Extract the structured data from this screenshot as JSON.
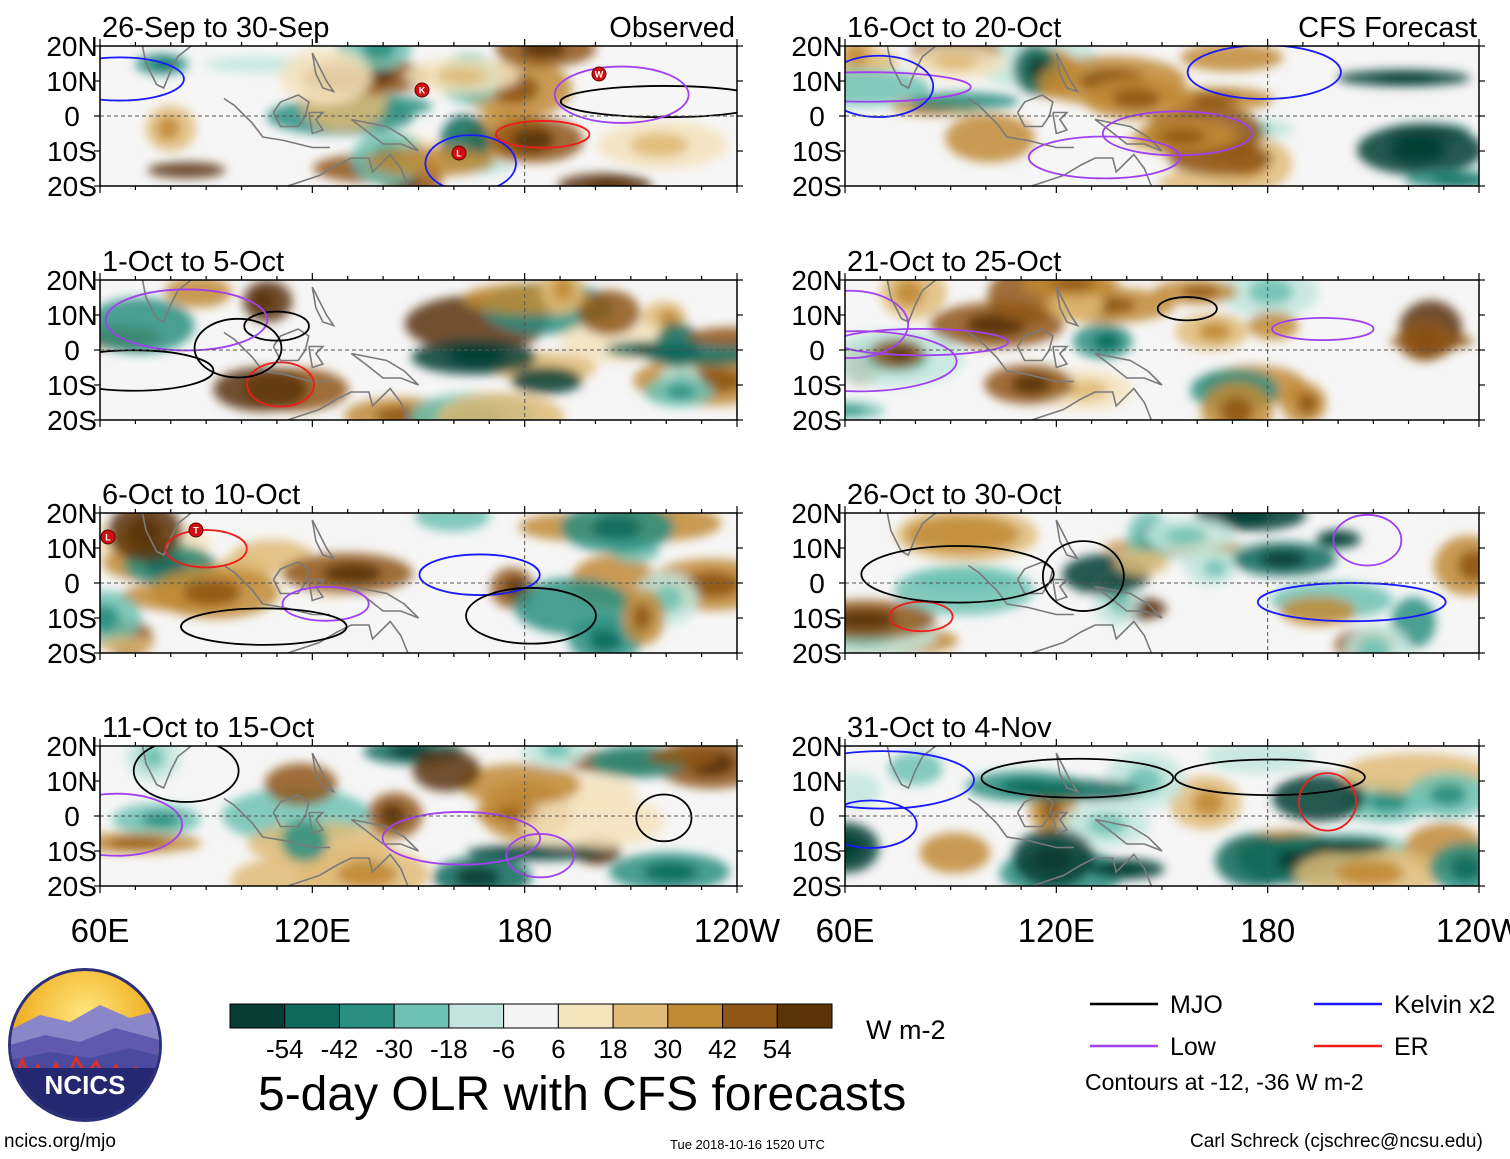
{
  "chart_data": {
    "type": "heatmap",
    "title": "5-day OLR with CFS forecasts",
    "units": "W m-2",
    "x_tick_labels": [
      "60E",
      "120E",
      "180",
      "120W"
    ],
    "y_tick_labels": [
      "20N",
      "10N",
      "0",
      "10S",
      "20S"
    ],
    "xlim_deg_east": [
      60,
      240
    ],
    "ylim_deg": [
      -20,
      20
    ],
    "panel_groups": {
      "observed": "Observed",
      "forecast": "CFS Forecast"
    },
    "panels": [
      {
        "title": "26-Sep to 30-Sep",
        "group": "observed"
      },
      {
        "title": "1-Oct to 5-Oct",
        "group": "observed"
      },
      {
        "title": "6-Oct to 10-Oct",
        "group": "observed"
      },
      {
        "title": "11-Oct to 15-Oct",
        "group": "observed"
      },
      {
        "title": "16-Oct to 20-Oct",
        "group": "forecast"
      },
      {
        "title": "21-Oct to 25-Oct",
        "group": "forecast"
      },
      {
        "title": "26-Oct to 30-Oct",
        "group": "forecast"
      },
      {
        "title": "31-Oct to 4-Nov",
        "group": "forecast"
      }
    ],
    "colorbar": {
      "ticks": [
        "-54",
        "-42",
        "-30",
        "-18",
        "-6",
        "6",
        "18",
        "30",
        "42",
        "54"
      ],
      "colors": [
        "#073d33",
        "#0f6a5c",
        "#2a8f80",
        "#6fc2b3",
        "#c2e6dd",
        "#f5f5f5",
        "#f4e3bd",
        "#dfbb77",
        "#c18a35",
        "#8f5615",
        "#5a3308"
      ]
    },
    "legend": [
      {
        "label": "MJO",
        "color": "#000000"
      },
      {
        "label": "Kelvin x2",
        "color": "#1a1aff"
      },
      {
        "label": "Low",
        "color": "#a040f0"
      },
      {
        "label": "ER",
        "color": "#ee1c1c"
      }
    ],
    "contour_note": "Contours at -12, -36 W m-2",
    "storm_markers": [
      {
        "panel": 0,
        "letter": "K"
      },
      {
        "panel": 0,
        "letter": "W"
      },
      {
        "panel": 0,
        "letter": "L"
      },
      {
        "panel": 2,
        "letter": "L"
      },
      {
        "panel": 2,
        "letter": "T"
      }
    ]
  },
  "footer": {
    "logo_text": "NCICS",
    "url": "ncics.org/mjo",
    "timestamp": "Tue 2018-10-16 1520 UTC",
    "author": "Carl Schreck (cjschrec@ncsu.edu)"
  }
}
